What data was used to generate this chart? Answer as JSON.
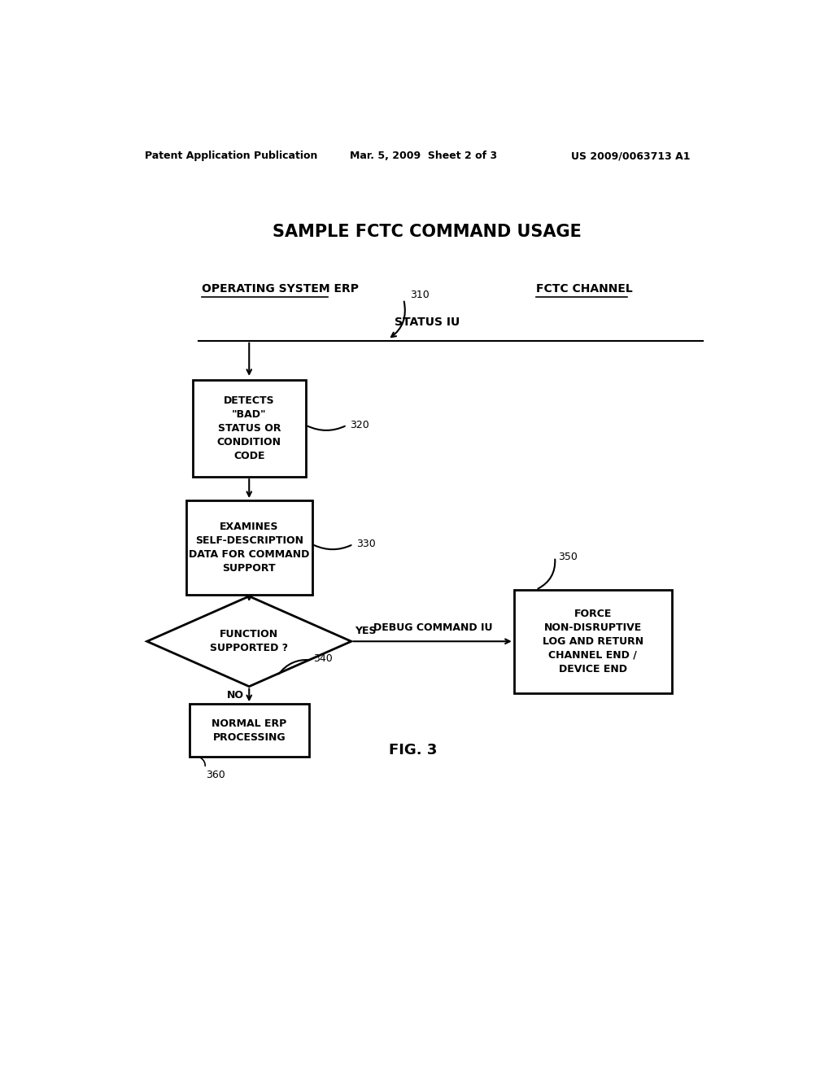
{
  "title": "SAMPLE FCTC COMMAND USAGE",
  "header_left": "Patent Application Publication",
  "header_mid": "Mar. 5, 2009  Sheet 2 of 3",
  "header_right": "US 2009/0063713 A1",
  "col_left_label": "OPERATING SYSTEM ERP",
  "col_right_label": "FCTC CHANNEL",
  "status_iu_label": "STATUS IU",
  "ref_310": "310",
  "ref_320": "320",
  "ref_330": "330",
  "ref_340": "340",
  "ref_350": "350",
  "ref_360": "360",
  "fig_label": "FIG. 3",
  "box1_text": "DETECTS\n\"BAD\"\nSTATUS OR\nCONDITION\nCODE",
  "box2_text": "EXAMINES\nSELF-DESCRIPTION\nDATA FOR COMMAND\nSUPPORT",
  "diamond_text": "FUNCTION\nSUPPORTED ?",
  "box3_text": "NORMAL ERP\nPROCESSING",
  "box4_text": "FORCE\nNON-DISRUPTIVE\nLOG AND RETURN\nCHANNEL END /\nDEVICE END",
  "debug_cmd_label": "DEBUG COMMAND IU",
  "yes_label": "YES",
  "no_label": "NO",
  "bg_color": "#ffffff",
  "box_color": "#ffffff",
  "box_edge_color": "#000000",
  "text_color": "#000000",
  "line_color": "#000000"
}
